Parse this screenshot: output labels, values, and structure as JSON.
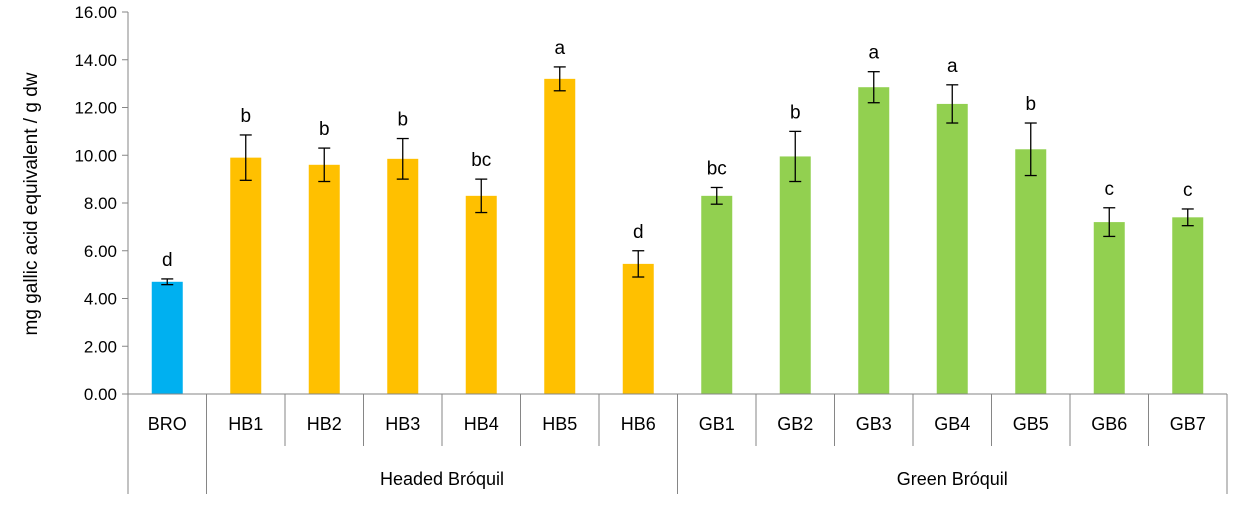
{
  "chart_data": {
    "type": "bar",
    "title": "",
    "ylabel": "mg  gallic acid equivalent / g dw",
    "xlabel": "",
    "ylim": [
      0,
      16
    ],
    "y_ticks": [
      "0.00",
      "2.00",
      "4.00",
      "6.00",
      "8.00",
      "10.00",
      "12.00",
      "14.00",
      "16.00"
    ],
    "grid": false,
    "categories": [
      "BRO",
      "HB1",
      "HB2",
      "HB3",
      "HB4",
      "HB5",
      "HB6",
      "GB1",
      "GB2",
      "GB3",
      "GB4",
      "GB5",
      "GB6",
      "GB7"
    ],
    "values": [
      4.7,
      9.9,
      9.6,
      9.85,
      8.3,
      13.2,
      5.45,
      8.3,
      9.95,
      12.85,
      12.15,
      10.25,
      7.2,
      7.4
    ],
    "errors": [
      0.12,
      0.95,
      0.7,
      0.85,
      0.7,
      0.5,
      0.55,
      0.35,
      1.05,
      0.65,
      0.8,
      1.1,
      0.6,
      0.35
    ],
    "significance": [
      "d",
      "b",
      "b",
      "b",
      "bc",
      "a",
      "d",
      "bc",
      "b",
      "a",
      "a",
      "b",
      "c",
      "c"
    ],
    "groups": [
      {
        "label": "",
        "members": [
          "BRO"
        ],
        "color": "#00B0F0"
      },
      {
        "label": "Headed Bróquil",
        "members": [
          "HB1",
          "HB2",
          "HB3",
          "HB4",
          "HB5",
          "HB6"
        ],
        "color": "#FFC000"
      },
      {
        "label": "Green Bróquil",
        "members": [
          "GB1",
          "GB2",
          "GB3",
          "GB4",
          "GB5",
          "GB6",
          "GB7"
        ],
        "color": "#92D050"
      }
    ]
  }
}
